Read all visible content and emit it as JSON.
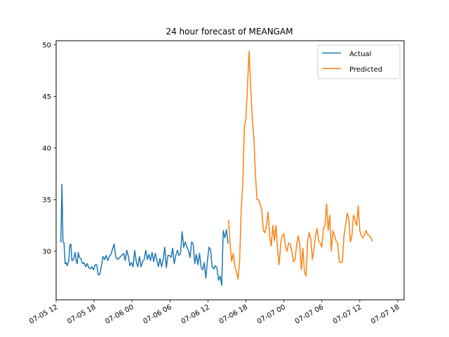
{
  "chart_data": {
    "type": "line",
    "title": "24 hour forecast of MEANGAM",
    "xlabel": "",
    "ylabel": "",
    "x_axis_type": "datetime",
    "x_range": [
      "2018-07-05 12:00",
      "2018-07-07 19:00"
    ],
    "ylim": [
      25.3,
      50.4
    ],
    "x_ticks": [
      {
        "x": "2018-07-05 12:00",
        "label": "07-05 12"
      },
      {
        "x": "2018-07-05 18:00",
        "label": "07-05 18"
      },
      {
        "x": "2018-07-06 00:00",
        "label": "07-06 00"
      },
      {
        "x": "2018-07-06 06:00",
        "label": "07-06 06"
      },
      {
        "x": "2018-07-06 12:00",
        "label": "07-06 12"
      },
      {
        "x": "2018-07-06 18:00",
        "label": "07-06 18"
      },
      {
        "x": "2018-07-07 00:00",
        "label": "07-07 00"
      },
      {
        "x": "2018-07-07 06:00",
        "label": "07-07 06"
      },
      {
        "x": "2018-07-07 12:00",
        "label": "07-07 12"
      },
      {
        "x": "2018-07-07 18:00",
        "label": "07-07 18"
      }
    ],
    "y_ticks": [
      30,
      35,
      40,
      45,
      50
    ],
    "grid": false,
    "legend": {
      "position": "upper right"
    },
    "series": [
      {
        "name": "Actual",
        "color": "#1f77b4",
        "points": [
          [
            "2018-07-05 12:45",
            30.9
          ],
          [
            "2018-07-05 12:55",
            36.5
          ],
          [
            "2018-07-05 13:05",
            31.0
          ],
          [
            "2018-07-05 13:15",
            30.8
          ],
          [
            "2018-07-05 13:25",
            28.8
          ],
          [
            "2018-07-05 13:35",
            28.9
          ],
          [
            "2018-07-05 13:45",
            28.6
          ],
          [
            "2018-07-05 14:00",
            29.1
          ],
          [
            "2018-07-05 14:10",
            30.6
          ],
          [
            "2018-07-05 14:20",
            30.7
          ],
          [
            "2018-07-05 14:30",
            29.1
          ],
          [
            "2018-07-05 14:45",
            29.2
          ],
          [
            "2018-07-05 15:00",
            29.9
          ],
          [
            "2018-07-05 15:10",
            29.1
          ],
          [
            "2018-07-05 15:20",
            28.8
          ],
          [
            "2018-07-05 15:30",
            29.9
          ],
          [
            "2018-07-05 15:40",
            29.4
          ],
          [
            "2018-07-05 15:55",
            29.3
          ],
          [
            "2018-07-05 16:10",
            28.8
          ],
          [
            "2018-07-05 16:25",
            28.9
          ],
          [
            "2018-07-05 16:40",
            28.5
          ],
          [
            "2018-07-05 16:55",
            28.8
          ],
          [
            "2018-07-05 17:10",
            28.4
          ],
          [
            "2018-07-05 17:25",
            28.3
          ],
          [
            "2018-07-05 17:40",
            28.5
          ],
          [
            "2018-07-05 17:55",
            28.2
          ],
          [
            "2018-07-05 18:10",
            28.7
          ],
          [
            "2018-07-05 18:25",
            28.7
          ],
          [
            "2018-07-05 18:40",
            27.7
          ],
          [
            "2018-07-05 18:55",
            27.8
          ],
          [
            "2018-07-05 19:10",
            28.6
          ],
          [
            "2018-07-05 19:25",
            29.5
          ],
          [
            "2018-07-05 19:40",
            29.2
          ],
          [
            "2018-07-05 19:55",
            29.6
          ],
          [
            "2018-07-05 20:10",
            29.1
          ],
          [
            "2018-07-05 20:25",
            29.5
          ],
          [
            "2018-07-05 20:40",
            29.7
          ],
          [
            "2018-07-05 20:55",
            30.2
          ],
          [
            "2018-07-05 21:10",
            30.7
          ],
          [
            "2018-07-05 21:25",
            29.5
          ],
          [
            "2018-07-05 21:40",
            29.2
          ],
          [
            "2018-07-05 21:55",
            29.3
          ],
          [
            "2018-07-05 22:10",
            29.5
          ],
          [
            "2018-07-05 22:25",
            29.6
          ],
          [
            "2018-07-05 22:40",
            29.8
          ],
          [
            "2018-07-05 22:55",
            29.1
          ],
          [
            "2018-07-05 23:10",
            30.1
          ],
          [
            "2018-07-05 23:25",
            29.5
          ],
          [
            "2018-07-05 23:40",
            28.6
          ],
          [
            "2018-07-05 23:55",
            28.9
          ],
          [
            "2018-07-06 00:10",
            28.5
          ],
          [
            "2018-07-06 00:25",
            30.1
          ],
          [
            "2018-07-06 00:40",
            29.0
          ],
          [
            "2018-07-06 00:55",
            28.5
          ],
          [
            "2018-07-06 01:10",
            29.5
          ],
          [
            "2018-07-06 01:25",
            28.5
          ],
          [
            "2018-07-06 01:40",
            29.0
          ],
          [
            "2018-07-06 01:55",
            29.2
          ],
          [
            "2018-07-06 02:10",
            30.1
          ],
          [
            "2018-07-06 02:25",
            29.2
          ],
          [
            "2018-07-06 02:40",
            29.7
          ],
          [
            "2018-07-06 02:55",
            29.1
          ],
          [
            "2018-07-06 03:10",
            29.9
          ],
          [
            "2018-07-06 03:25",
            29.0
          ],
          [
            "2018-07-06 03:40",
            29.8
          ],
          [
            "2018-07-06 03:55",
            29.2
          ],
          [
            "2018-07-06 04:10",
            28.5
          ],
          [
            "2018-07-06 04:25",
            29.3
          ],
          [
            "2018-07-06 04:40",
            28.5
          ],
          [
            "2018-07-06 04:55",
            29.2
          ],
          [
            "2018-07-06 05:10",
            30.4
          ],
          [
            "2018-07-06 05:25",
            28.4
          ],
          [
            "2018-07-06 05:40",
            29.6
          ],
          [
            "2018-07-06 05:55",
            29.6
          ],
          [
            "2018-07-06 06:10",
            29.4
          ],
          [
            "2018-07-06 06:25",
            30.3
          ],
          [
            "2018-07-06 06:40",
            28.8
          ],
          [
            "2018-07-06 06:55",
            29.6
          ],
          [
            "2018-07-06 07:10",
            30.1
          ],
          [
            "2018-07-06 07:25",
            29.6
          ],
          [
            "2018-07-06 07:40",
            29.8
          ],
          [
            "2018-07-06 07:55",
            31.9
          ],
          [
            "2018-07-06 08:10",
            30.4
          ],
          [
            "2018-07-06 08:25",
            30.9
          ],
          [
            "2018-07-06 08:40",
            30.4
          ],
          [
            "2018-07-06 08:55",
            30.1
          ],
          [
            "2018-07-06 09:10",
            29.4
          ],
          [
            "2018-07-06 09:25",
            30.9
          ],
          [
            "2018-07-06 09:40",
            30.7
          ],
          [
            "2018-07-06 09:55",
            28.8
          ],
          [
            "2018-07-06 10:10",
            29.7
          ],
          [
            "2018-07-06 10:25",
            28.7
          ],
          [
            "2018-07-06 10:40",
            29.8
          ],
          [
            "2018-07-06 10:55",
            28.5
          ],
          [
            "2018-07-06 11:10",
            28.2
          ],
          [
            "2018-07-06 11:25",
            28.9
          ],
          [
            "2018-07-06 11:40",
            27.4
          ],
          [
            "2018-07-06 11:55",
            29.1
          ],
          [
            "2018-07-06 12:10",
            30.4
          ],
          [
            "2018-07-06 12:25",
            30.1
          ],
          [
            "2018-07-06 12:40",
            28.5
          ],
          [
            "2018-07-06 12:55",
            28.3
          ],
          [
            "2018-07-06 13:10",
            28.6
          ],
          [
            "2018-07-06 13:25",
            28.4
          ],
          [
            "2018-07-06 13:40",
            27.2
          ],
          [
            "2018-07-06 13:55",
            27.6
          ],
          [
            "2018-07-06 14:10",
            26.7
          ],
          [
            "2018-07-06 14:25",
            32.0
          ],
          [
            "2018-07-06 14:40",
            31.3
          ],
          [
            "2018-07-06 14:55",
            32.1
          ],
          [
            "2018-07-06 15:10",
            30.8
          ]
        ]
      },
      {
        "name": "Predicted",
        "color": "#ff7f0e",
        "points": [
          [
            "2018-07-06 15:15",
            33.0
          ],
          [
            "2018-07-06 15:30",
            30.6
          ],
          [
            "2018-07-06 15:45",
            29.0
          ],
          [
            "2018-07-06 16:00",
            29.8
          ],
          [
            "2018-07-06 16:15",
            28.6
          ],
          [
            "2018-07-06 16:30",
            28.0
          ],
          [
            "2018-07-06 16:45",
            27.3
          ],
          [
            "2018-07-06 17:00",
            29.0
          ],
          [
            "2018-07-06 17:15",
            34.0
          ],
          [
            "2018-07-06 17:30",
            36.5
          ],
          [
            "2018-07-06 17:45",
            42.0
          ],
          [
            "2018-07-06 18:00",
            42.8
          ],
          [
            "2018-07-06 18:15",
            46.0
          ],
          [
            "2018-07-06 18:30",
            49.4
          ],
          [
            "2018-07-06 18:45",
            46.0
          ],
          [
            "2018-07-06 19:00",
            43.0
          ],
          [
            "2018-07-06 19:15",
            41.0
          ],
          [
            "2018-07-06 19:30",
            37.5
          ],
          [
            "2018-07-06 19:45",
            35.0
          ],
          [
            "2018-07-06 20:00",
            35.0
          ],
          [
            "2018-07-06 20:15",
            34.5
          ],
          [
            "2018-07-06 20:30",
            34.0
          ],
          [
            "2018-07-06 20:45",
            32.0
          ],
          [
            "2018-07-06 21:00",
            31.8
          ],
          [
            "2018-07-06 21:15",
            32.5
          ],
          [
            "2018-07-06 21:30",
            33.8
          ],
          [
            "2018-07-06 21:45",
            31.5
          ],
          [
            "2018-07-06 22:00",
            30.5
          ],
          [
            "2018-07-06 22:15",
            32.5
          ],
          [
            "2018-07-06 22:30",
            31.0
          ],
          [
            "2018-07-06 22:45",
            32.5
          ],
          [
            "2018-07-06 23:00",
            30.2
          ],
          [
            "2018-07-06 23:15",
            28.7
          ],
          [
            "2018-07-06 23:30",
            30.8
          ],
          [
            "2018-07-06 23:45",
            31.5
          ],
          [
            "2018-07-07 00:00",
            31.7
          ],
          [
            "2018-07-07 00:15",
            30.5
          ],
          [
            "2018-07-07 00:30",
            30.0
          ],
          [
            "2018-07-07 00:45",
            30.8
          ],
          [
            "2018-07-07 01:00",
            30.7
          ],
          [
            "2018-07-07 01:15",
            30.0
          ],
          [
            "2018-07-07 01:30",
            29.0
          ],
          [
            "2018-07-07 01:45",
            29.2
          ],
          [
            "2018-07-07 02:00",
            30.5
          ],
          [
            "2018-07-07 02:15",
            31.5
          ],
          [
            "2018-07-07 02:30",
            30.7
          ],
          [
            "2018-07-07 02:45",
            28.2
          ],
          [
            "2018-07-07 03:00",
            30.3
          ],
          [
            "2018-07-07 03:15",
            28.0
          ],
          [
            "2018-07-07 03:30",
            27.6
          ],
          [
            "2018-07-07 03:45",
            31.0
          ],
          [
            "2018-07-07 04:00",
            31.8
          ],
          [
            "2018-07-07 04:15",
            31.2
          ],
          [
            "2018-07-07 04:30",
            29.2
          ],
          [
            "2018-07-07 04:45",
            30.2
          ],
          [
            "2018-07-07 05:00",
            31.5
          ],
          [
            "2018-07-07 05:15",
            32.2
          ],
          [
            "2018-07-07 05:30",
            31.0
          ],
          [
            "2018-07-07 05:45",
            30.8
          ],
          [
            "2018-07-07 06:00",
            30.4
          ],
          [
            "2018-07-07 06:15",
            32.2
          ],
          [
            "2018-07-07 06:30",
            32.5
          ],
          [
            "2018-07-07 06:45",
            34.6
          ],
          [
            "2018-07-07 07:00",
            32.0
          ],
          [
            "2018-07-07 07:15",
            33.5
          ],
          [
            "2018-07-07 07:30",
            30.0
          ],
          [
            "2018-07-07 07:45",
            32.0
          ],
          [
            "2018-07-07 08:00",
            31.5
          ],
          [
            "2018-07-07 08:15",
            31.0
          ],
          [
            "2018-07-07 08:30",
            30.8
          ],
          [
            "2018-07-07 08:45",
            29.0
          ],
          [
            "2018-07-07 09:00",
            28.9
          ],
          [
            "2018-07-07 09:15",
            29.0
          ],
          [
            "2018-07-07 09:30",
            31.5
          ],
          [
            "2018-07-07 09:45",
            32.5
          ],
          [
            "2018-07-07 10:00",
            33.7
          ],
          [
            "2018-07-07 10:15",
            33.2
          ],
          [
            "2018-07-07 10:30",
            30.9
          ],
          [
            "2018-07-07 10:45",
            31.5
          ],
          [
            "2018-07-07 11:00",
            33.5
          ],
          [
            "2018-07-07 11:15",
            33.0
          ],
          [
            "2018-07-07 11:30",
            32.5
          ],
          [
            "2018-07-07 11:45",
            34.4
          ],
          [
            "2018-07-07 12:00",
            32.0
          ],
          [
            "2018-07-07 12:15",
            31.5
          ],
          [
            "2018-07-07 12:30",
            31.3
          ],
          [
            "2018-07-07 12:45",
            31.6
          ],
          [
            "2018-07-07 13:00",
            32.0
          ],
          [
            "2018-07-07 13:15",
            31.6
          ],
          [
            "2018-07-07 13:30",
            31.5
          ],
          [
            "2018-07-07 13:45",
            31.3
          ],
          [
            "2018-07-07 14:00",
            31.0
          ]
        ]
      }
    ]
  }
}
